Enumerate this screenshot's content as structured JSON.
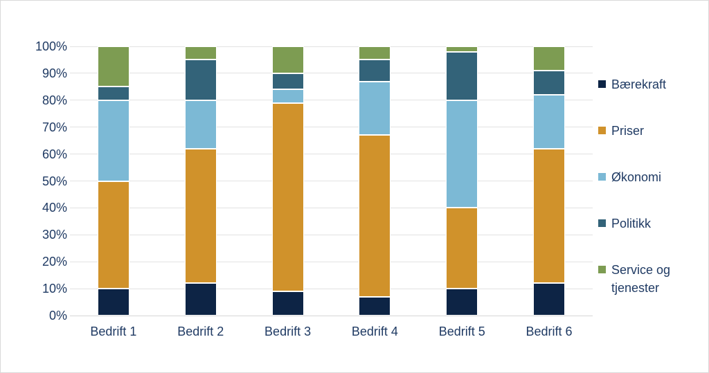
{
  "chart_data": {
    "type": "bar",
    "variant": "stacked-100-percent-column",
    "title": "",
    "xlabel": "",
    "ylabel": "",
    "grid": true,
    "legend_position": "right",
    "categories": [
      "Bedrift 1",
      "Bedrift 2",
      "Bedrift 3",
      "Bedrift 4",
      "Bedrift 5",
      "Bedrift 6"
    ],
    "series": [
      {
        "name": "Bærekraft",
        "color": "#0d2445",
        "values": [
          10,
          12,
          9,
          7,
          10,
          12
        ]
      },
      {
        "name": "Priser",
        "color": "#d0922b",
        "values": [
          40,
          50,
          70,
          60,
          30,
          50
        ]
      },
      {
        "name": "Økonomi",
        "color": "#7cb9d5",
        "values": [
          30,
          18,
          5,
          20,
          40,
          20
        ]
      },
      {
        "name": "Politikk",
        "color": "#336379",
        "values": [
          5,
          15,
          6,
          8,
          18,
          9
        ]
      },
      {
        "name": "Service og tjenester",
        "color": "#7d9c52",
        "values": [
          15,
          5,
          10,
          5,
          2,
          9
        ]
      }
    ],
    "stack_order_bottom_to_top": [
      "Bærekraft",
      "Priser",
      "Økonomi",
      "Politikk",
      "Service og tjenester"
    ],
    "y_axis": {
      "min": 0,
      "max": 100,
      "tick_step": 10,
      "tick_labels": [
        "0%",
        "10%",
        "20%",
        "30%",
        "40%",
        "50%",
        "60%",
        "70%",
        "80%",
        "90%",
        "100%"
      ]
    }
  },
  "colors": {
    "text": "#1f3a63",
    "gridline": "#e2e2e2",
    "axis_baseline": "#d6d6d6",
    "background": "#ffffff",
    "frame_border": "#d9d9d9"
  }
}
